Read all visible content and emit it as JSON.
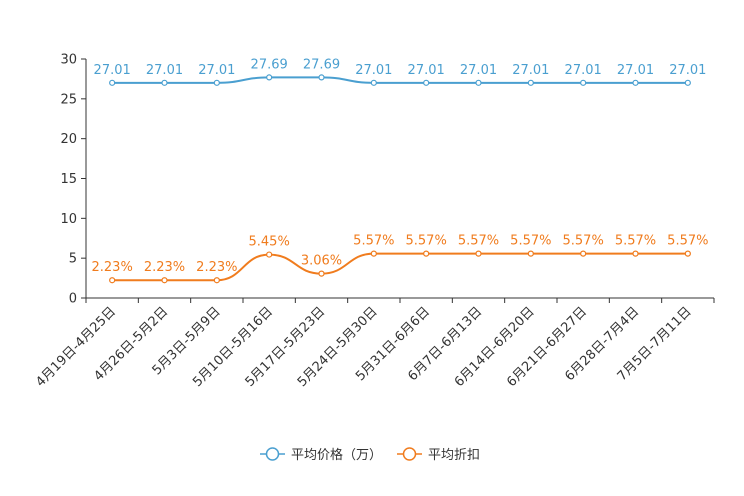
{
  "chart_data": {
    "type": "line",
    "title": "",
    "xlabel": "",
    "ylabel": "",
    "ylim": [
      0,
      30
    ],
    "yticks": [
      0,
      5,
      10,
      15,
      20,
      25,
      30
    ],
    "grid": false,
    "legend_position": "bottom-center",
    "categories": [
      "4月19日-4月25日",
      "4月26日-5月2日",
      "5月3日-5月9日",
      "5月10日-5月16日",
      "5月17日-5月23日",
      "5月24日-5月30日",
      "5月31日-6月6日",
      "6月7日-6月13日",
      "6月14日-6月20日",
      "6月21日-6月27日",
      "6月28日-7月4日",
      "7月5日-7月11日"
    ],
    "series": [
      {
        "name": "平均价格（万）",
        "color": "#4a9fd0",
        "values": [
          27.01,
          27.01,
          27.01,
          27.69,
          27.69,
          27.01,
          27.01,
          27.01,
          27.01,
          27.01,
          27.01,
          27.01
        ],
        "labels": [
          "27.01",
          "27.01",
          "27.01",
          "27.69",
          "27.69",
          "27.01",
          "27.01",
          "27.01",
          "27.01",
          "27.01",
          "27.01",
          "27.01"
        ]
      },
      {
        "name": "平均折扣",
        "color": "#f07c1e",
        "values": [
          2.23,
          2.23,
          2.23,
          5.45,
          3.06,
          5.57,
          5.57,
          5.57,
          5.57,
          5.57,
          5.57,
          5.57
        ],
        "labels": [
          "2.23%",
          "2.23%",
          "2.23%",
          "5.45%",
          "3.06%",
          "5.57%",
          "5.57%",
          "5.57%",
          "5.57%",
          "5.57%",
          "5.57%",
          "5.57%"
        ]
      }
    ]
  }
}
